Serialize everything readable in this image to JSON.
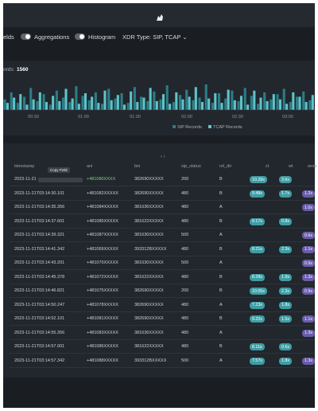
{
  "toolbar": {
    "fields": "elds",
    "aggregations": "Aggregations",
    "histogram": "Histogram",
    "xdr_type": "XDR Type: SIP, TCAP ⌄"
  },
  "histogram": {
    "records_label": "ords:",
    "records_count": "1560",
    "x_labels": [
      "00:30",
      "01:00",
      "01:30",
      "02:00",
      "02:30",
      "03:00"
    ],
    "series": [
      {
        "name": "SIP Records",
        "color": "#2b7d86",
        "values": [
          12,
          20,
          8,
          15,
          25,
          10,
          18,
          6,
          22,
          14,
          9,
          27,
          16,
          11,
          20,
          7,
          24,
          13,
          19,
          8,
          26,
          15,
          10,
          21,
          12,
          28,
          9,
          17,
          23,
          11,
          14,
          29,
          8,
          19,
          13,
          22,
          10,
          25,
          16,
          7,
          20,
          12,
          18,
          24,
          9,
          15,
          21,
          11
        ]
      },
      {
        "name": "TCAP Records",
        "color": "#5ec4c9",
        "values": [
          8,
          14,
          18,
          6,
          12,
          20,
          9,
          16,
          10,
          24,
          13,
          7,
          19,
          15,
          8,
          22,
          11,
          17,
          6,
          21,
          9,
          14,
          25,
          10,
          18,
          7,
          20,
          12,
          15,
          26,
          9,
          13,
          19,
          8,
          23,
          11,
          16,
          6,
          22,
          14,
          10,
          18,
          12,
          7,
          20,
          15,
          9,
          17
        ]
      }
    ]
  },
  "table": {
    "tooltip": "Copy Field",
    "headers": [
      "timestamp",
      "ani",
      "bni",
      "sip_status",
      "rel_dir",
      "ct",
      "wt",
      "wrsp"
    ],
    "rows": [
      [
        "2023-11-21",
        "+481080XXXX",
        "382690XXXXX",
        "200",
        "B",
        "10.28s",
        "3.6s",
        null
      ],
      [
        "2023-11-21T03:14:30.101",
        "+481082XXXXX",
        "382690XXXXX",
        "480",
        "B",
        "9.48s",
        "1.7s",
        "1.2s"
      ],
      [
        "2023-11-21T03:14:35.356",
        "+481084XXXXX",
        "381636XXXXX",
        "480",
        "A",
        null,
        null,
        "1.0s"
      ],
      [
        "2023-11-21T03:14:37.601",
        "+481085XXXXX",
        "381622XXXXX",
        "480",
        "B",
        "9.17s",
        "0.8s",
        null
      ],
      [
        "2023-11-21T03:14:39.321",
        "+481087XXXXX",
        "381630XXXXX",
        "500",
        "A",
        null,
        null,
        "0.6s"
      ],
      [
        "2023-11-21T03:14:41.342",
        "+481069XXXXX",
        "393312BXXXXX",
        "480",
        "B",
        "8.21s",
        "2.3s",
        "1.1s"
      ],
      [
        "2023-11-21T03:14:43.201",
        "+481070XXXXX",
        "381630XXXXX",
        "500",
        "A",
        null,
        null,
        "0.9s"
      ],
      [
        "2023-11-21T03:14:45.378",
        "+481072XXXXX",
        "381622XXXXX",
        "480",
        "B",
        "8.28s",
        "1.9s",
        "1.3s"
      ],
      [
        "2023-11-21T03:14:46.821",
        "+481075XXXXX",
        "382690XXXXX",
        "200",
        "B",
        "10.05s",
        "2.3s",
        "0.9s"
      ],
      [
        "2023-11-21T03:14:50.247",
        "+481078XXXXX",
        "382690XXXXX",
        "480",
        "A",
        "7.23s",
        "1.8s",
        null
      ],
      [
        "2023-11-21T03:14:52.101",
        "+481081XXXXX",
        "382690XXXXX",
        "480",
        "B",
        "9.22s",
        "1.5s",
        "1.1s"
      ],
      [
        "2023-11-21T03:14:55.356",
        "+481083XXXXX",
        "381636XXXXX",
        "480",
        "A",
        null,
        null,
        "1.3s"
      ],
      [
        "2023-11-21T03:14:57.001",
        "+481086XXXXX",
        "381622XXXXX",
        "480",
        "B",
        "8.11s",
        "0.6s",
        null
      ],
      [
        "2023-11-21T03:14:57.342",
        "+481088XXXXX",
        "393312BXXXXX",
        "500",
        "A",
        "7.57s",
        "1.8s",
        "1.3s"
      ]
    ]
  }
}
